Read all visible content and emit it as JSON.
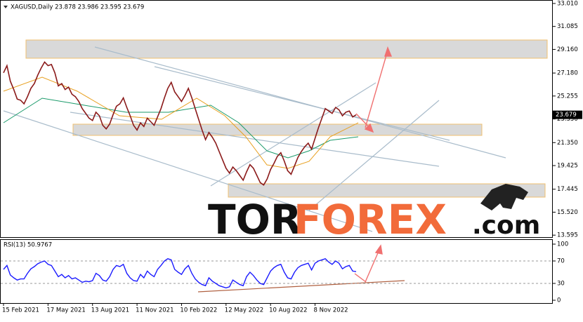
{
  "chart_data": [
    {
      "type": "line",
      "title": "XAGUSD,Daily  23.878 23.986 23.595 23.679",
      "categories": [
        "15 Feb 2021",
        null,
        null,
        null,
        null,
        null,
        null,
        null,
        null,
        null,
        null,
        null,
        null,
        "17 May 2021",
        null,
        null,
        null,
        null,
        null,
        null,
        null,
        null,
        null,
        null,
        null,
        null,
        "13 Aug 2021",
        null,
        null,
        null,
        null,
        null,
        null,
        null,
        null,
        null,
        null,
        null,
        null,
        "11 Nov 2021",
        null,
        null,
        null,
        null,
        null,
        null,
        null,
        null,
        null,
        null,
        null,
        null,
        "10 Feb 2022",
        null,
        null,
        null,
        null,
        null,
        null,
        null,
        null,
        null,
        null,
        null,
        null,
        "12 May 2022",
        null,
        null,
        null,
        null,
        null,
        null,
        null,
        null,
        null,
        null,
        null,
        null,
        "10 Aug 2022",
        null,
        null,
        null,
        null,
        null,
        null,
        null,
        null,
        null,
        null,
        null,
        null,
        "8 Nov 2022",
        null,
        null,
        null,
        null,
        null,
        null,
        null,
        null,
        null,
        null,
        null,
        null
      ],
      "values": [
        27.2,
        27.8,
        26.5,
        25.8,
        25.0,
        24.9,
        24.6,
        25.2,
        25.9,
        26.3,
        27.0,
        27.6,
        28.1,
        27.8,
        27.9,
        27.2,
        26.1,
        26.3,
        25.8,
        26.0,
        25.4,
        25.2,
        24.8,
        24.2,
        23.8,
        23.4,
        23.2,
        23.9,
        23.6,
        22.8,
        22.5,
        22.9,
        23.7,
        24.4,
        24.6,
        25.1,
        24.3,
        23.6,
        22.8,
        22.4,
        23.0,
        22.7,
        23.4,
        23.1,
        22.8,
        23.5,
        24.2,
        25.1,
        25.9,
        26.4,
        25.6,
        25.2,
        24.8,
        25.3,
        25.9,
        25.1,
        24.2,
        23.3,
        22.4,
        21.6,
        22.2,
        21.8,
        21.3,
        20.6,
        19.9,
        19.2,
        18.8,
        19.3,
        19.0,
        18.6,
        18.2,
        18.9,
        19.5,
        19.2,
        18.6,
        18.0,
        17.8,
        18.3,
        19.1,
        19.6,
        20.2,
        20.5,
        19.8,
        19.0,
        18.7,
        19.4,
        20.1,
        20.6,
        21.0,
        21.3,
        20.8,
        21.7,
        22.6,
        23.4,
        24.2,
        24.0,
        23.8,
        24.3,
        24.1,
        23.6,
        23.9,
        24.0,
        23.5,
        23.679
      ],
      "color": "#8b1a1a",
      "ylim": [
        13.43,
        33.3
      ],
      "yticks": [
        {
          "value": 33.01,
          "label": "33.010"
        },
        {
          "value": 31.085,
          "label": "31.085"
        },
        {
          "value": 29.16,
          "label": "29.160"
        },
        {
          "value": 27.18,
          "label": "27.180"
        },
        {
          "value": 25.255,
          "label": "25.255"
        },
        {
          "value": 23.33,
          "label": "23.330"
        },
        {
          "value": 21.35,
          "label": "21.350"
        },
        {
          "value": 19.425,
          "label": "19.425"
        },
        {
          "value": 17.445,
          "label": "17.445"
        },
        {
          "value": 15.52,
          "label": "15.520"
        },
        {
          "value": 13.595,
          "label": "13.595"
        }
      ],
      "watermark_parts": [
        "TOR",
        "FOREX",
        ".com"
      ]
    },
    {
      "type": "line",
      "title": "RSI(13) 50.9767",
      "values": [
        55,
        62,
        45,
        40,
        36,
        38,
        38,
        48,
        56,
        60,
        65,
        68,
        70,
        64,
        62,
        52,
        42,
        46,
        40,
        44,
        38,
        40,
        36,
        32,
        34,
        33,
        35,
        48,
        44,
        36,
        34,
        42,
        55,
        62,
        60,
        64,
        48,
        40,
        35,
        34,
        46,
        40,
        52,
        46,
        42,
        55,
        62,
        70,
        74,
        72,
        55,
        50,
        46,
        56,
        62,
        48,
        38,
        32,
        28,
        26,
        40,
        34,
        30,
        26,
        24,
        22,
        24,
        36,
        32,
        28,
        26,
        42,
        50,
        44,
        36,
        30,
        28,
        40,
        52,
        58,
        62,
        64,
        50,
        40,
        38,
        50,
        58,
        62,
        64,
        66,
        54,
        66,
        70,
        72,
        74,
        68,
        64,
        70,
        66,
        56,
        60,
        62,
        52,
        50.9767
      ],
      "color": "#1a1aff",
      "ylim": [
        -5,
        107.5
      ],
      "yticks": [
        0,
        30,
        70,
        100
      ]
    }
  ]
}
